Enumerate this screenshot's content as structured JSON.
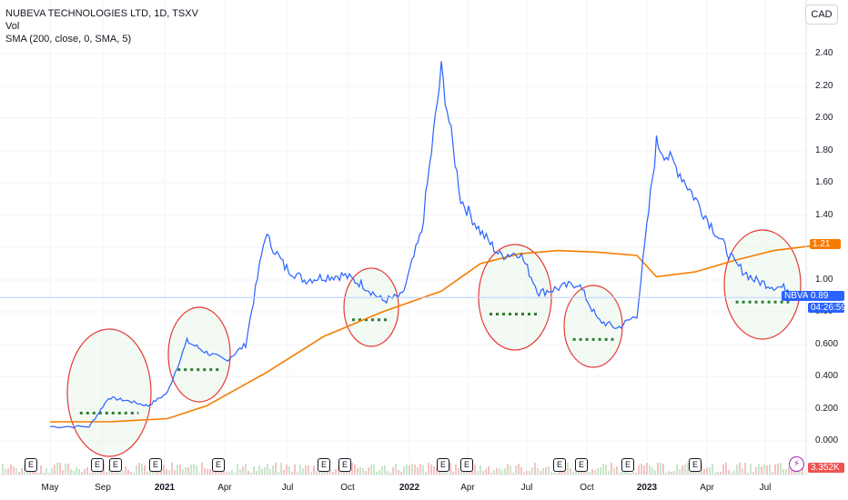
{
  "legend": {
    "title": "NUBEVA TECHNOLOGIES LTD, 1D, TSXV",
    "vol": "Vol",
    "sma": "SMA (200, close, 0, SMA, 5)"
  },
  "currency_button": "CAD",
  "tags": {
    "sma_value": "1.21",
    "symbol": "NBVA",
    "last_price": "0.89",
    "countdown": "04:26:59",
    "volume": "3.352K"
  },
  "earnings_marker_label": "E",
  "flash_icon": "lightning-icon",
  "colors": {
    "price_line": "#2962ff",
    "sma_line": "#f57c00",
    "circle": "#e53935",
    "dotted_support": "#2e7d32",
    "circle_fill": "#e8f5e9",
    "price_tag": "#2962ff",
    "sma_tag": "#f57c00",
    "volume_tag": "#ef5350"
  },
  "chart_data": {
    "type": "line",
    "title": "NUBEVA TECHNOLOGIES LTD, 1D, TSXV",
    "y_scale": "log",
    "y_ticks": [
      "2.40",
      "2.20",
      "2.00",
      "1.80",
      "1.60",
      "1.40",
      "1.20",
      "1.00",
      "0.80",
      "0.600",
      "0.400",
      "0.200",
      "0.000"
    ],
    "x_ticks": [
      {
        "label": "May",
        "bold": false
      },
      {
        "label": "Sep",
        "bold": false
      },
      {
        "label": "2021",
        "bold": true
      },
      {
        "label": "Apr",
        "bold": false
      },
      {
        "label": "Jul",
        "bold": false
      },
      {
        "label": "Oct",
        "bold": false
      },
      {
        "label": "2022",
        "bold": true
      },
      {
        "label": "Apr",
        "bold": false
      },
      {
        "label": "Jul",
        "bold": false
      },
      {
        "label": "Oct",
        "bold": false
      },
      {
        "label": "2023",
        "bold": true
      },
      {
        "label": "Apr",
        "bold": false
      },
      {
        "label": "Jul",
        "bold": false
      }
    ],
    "series": [
      {
        "name": "NBVA",
        "x": [
          "2020-05",
          "2020-07",
          "2020-08",
          "2020-09",
          "2020-10",
          "2020-11",
          "2020-12",
          "2021-01",
          "2021-02",
          "2021-03",
          "2021-04",
          "2021-05",
          "2021-06",
          "2021-07",
          "2021-08",
          "2021-09",
          "2021-10",
          "2021-11",
          "2021-12",
          "2022-01",
          "2022-02",
          "2022-03",
          "2022-04",
          "2022-05",
          "2022-06",
          "2022-07",
          "2022-08",
          "2022-09",
          "2022-10",
          "2022-11",
          "2022-12",
          "2023-01",
          "2023-02",
          "2023-03",
          "2023-04",
          "2023-05",
          "2023-06",
          "2023-07",
          "2023-08"
        ],
        "values": [
          0.09,
          0.09,
          0.27,
          0.25,
          0.22,
          0.3,
          0.62,
          0.55,
          0.5,
          0.6,
          1.28,
          1.08,
          1.0,
          1.02,
          1.03,
          0.97,
          0.87,
          0.9,
          1.3,
          2.3,
          1.5,
          1.3,
          1.15,
          1.17,
          0.92,
          0.95,
          0.98,
          0.75,
          0.7,
          0.78,
          1.85,
          1.7,
          1.5,
          1.3,
          1.1,
          1.0,
          0.96,
          0.94,
          0.89
        ]
      },
      {
        "name": "SMA (200, close, 0, SMA, 5)",
        "x": [
          "2020-05",
          "2020-08",
          "2020-11",
          "2021-01",
          "2021-04",
          "2021-07",
          "2021-10",
          "2022-01",
          "2022-03",
          "2022-05",
          "2022-07",
          "2022-09",
          "2022-11",
          "2022-12",
          "2023-02",
          "2023-04",
          "2023-06",
          "2023-08"
        ],
        "values": [
          0.12,
          0.12,
          0.14,
          0.22,
          0.42,
          0.65,
          0.8,
          0.93,
          1.1,
          1.16,
          1.18,
          1.17,
          1.15,
          1.02,
          1.05,
          1.12,
          1.18,
          1.21
        ]
      }
    ],
    "last_values": {
      "price": 0.89,
      "sma": 1.21,
      "volume": "3.352K"
    }
  }
}
